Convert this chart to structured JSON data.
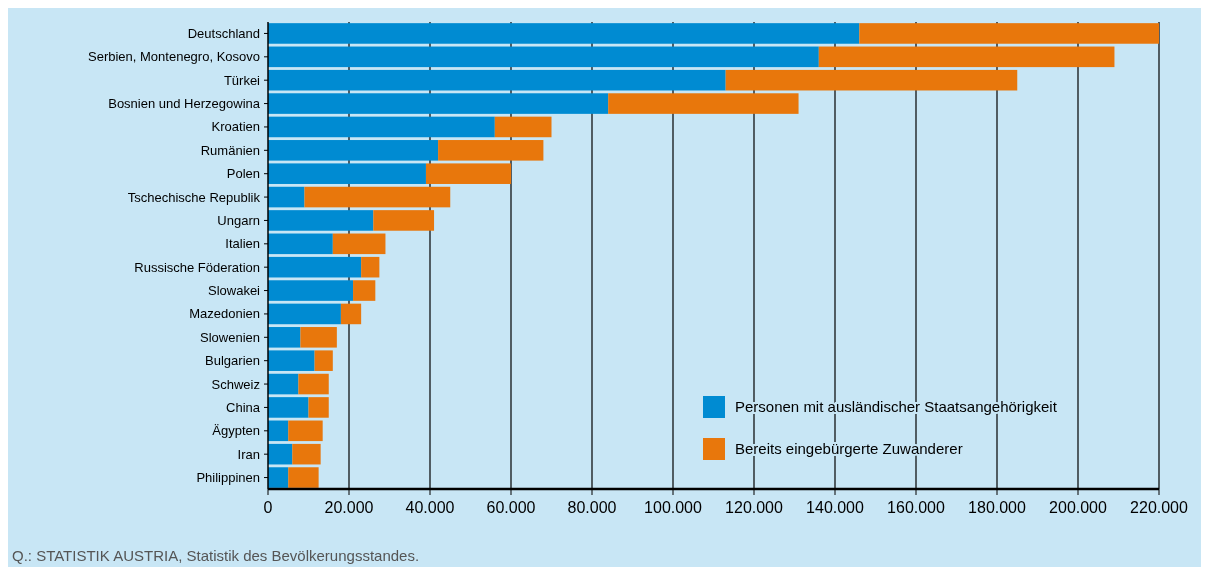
{
  "chart_data": {
    "type": "bar",
    "orientation": "horizontal",
    "stacked": true,
    "categories": [
      "Deutschland",
      "Serbien, Montenegro, Kosovo",
      "Türkei",
      "Bosnien und Herzegowina",
      "Kroatien",
      "Rumänien",
      "Polen",
      "Tschechische Republik",
      "Ungarn",
      "Italien",
      "Russische Föderation",
      "Slowakei",
      "Mazedonien",
      "Slowenien",
      "Bulgarien",
      "Schweiz",
      "China",
      "Ägypten",
      "Iran",
      "Philippinen"
    ],
    "series": [
      {
        "name": "Personen mit ausländischer Staatsangehörigkeit",
        "color": "#008bd2",
        "values": [
          146000,
          136000,
          113000,
          84000,
          56000,
          42000,
          39000,
          9000,
          26000,
          16000,
          23000,
          21000,
          18000,
          8000,
          11500,
          7500,
          10000,
          5000,
          6000,
          5000
        ]
      },
      {
        "name": "Bereits eingebürgerte Zuwanderer",
        "color": "#e8770c",
        "values": [
          74000,
          73000,
          72000,
          47000,
          14000,
          26000,
          21000,
          36000,
          15000,
          13000,
          4500,
          5500,
          5000,
          9000,
          4500,
          7500,
          5000,
          8500,
          7000,
          7500
        ]
      }
    ],
    "xlim": [
      0,
      220000
    ],
    "xticks": [
      0,
      {
        "value": 20000,
        "label": "20.000"
      },
      {
        "value": 40000,
        "label": "40.000"
      },
      {
        "value": 60000,
        "label": "60.000"
      },
      {
        "value": 80000,
        "label": "80.000"
      },
      {
        "value": 100000,
        "label": "100.000"
      },
      {
        "value": 120000,
        "label": "120.000"
      },
      {
        "value": 140000,
        "label": "140.000"
      },
      {
        "value": 160000,
        "label": "160.000"
      },
      {
        "value": 180000,
        "label": "180.000"
      },
      {
        "value": 200000,
        "label": "200.000"
      },
      {
        "value": 220000,
        "label": "220.000"
      }
    ],
    "grid": "x",
    "legend": "bottom right",
    "annotations": [
      "Q.: STATISTIK AUSTRIA, Statistik des Bevölkerungsstandes."
    ]
  }
}
